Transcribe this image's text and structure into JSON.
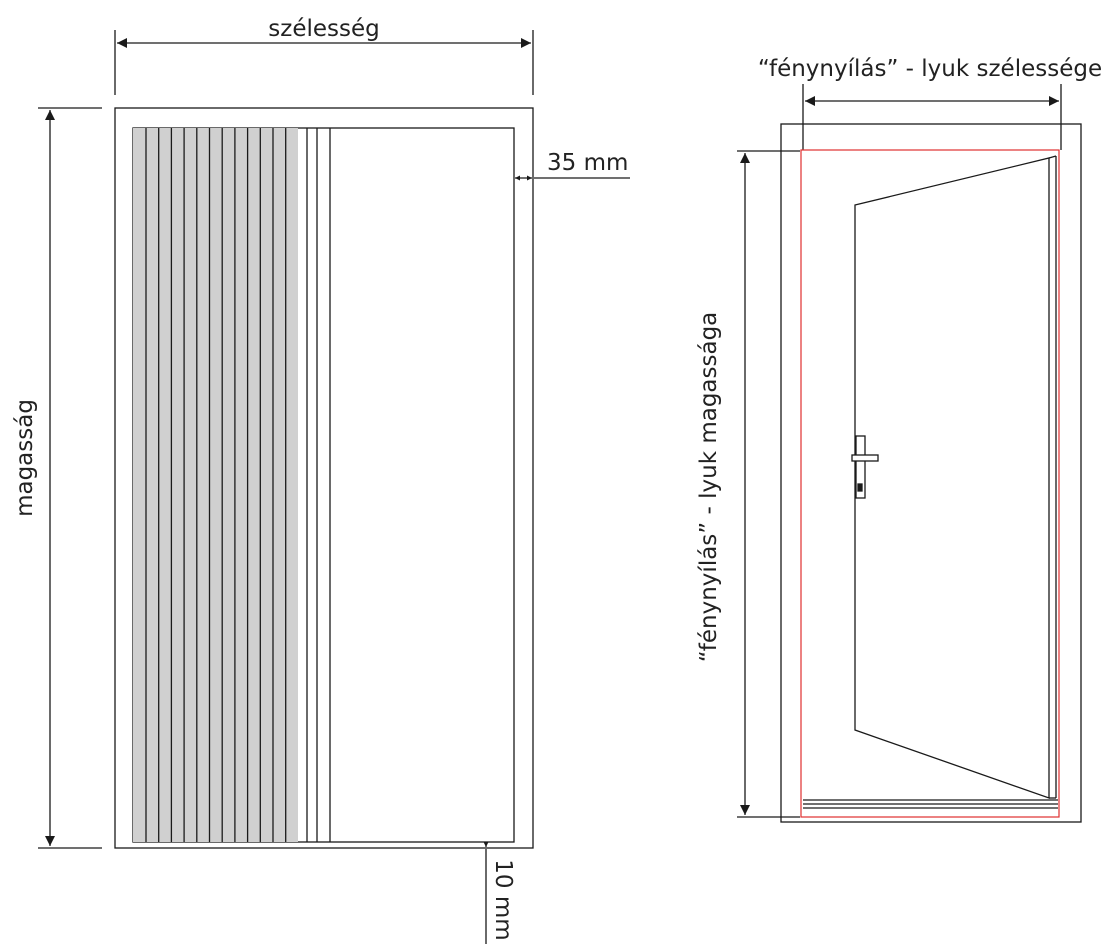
{
  "left_drawing": {
    "width_label": "szélesség",
    "height_label": "magasság",
    "side_gap_label": "35 mm",
    "bottom_gap_label": "10 mm",
    "pleat_fill_color": "#d0d0d0"
  },
  "right_drawing": {
    "opening_width_label": "“fénynyílás” - lyuk szélessége",
    "opening_height_label": "“fénynyílás” - lyuk magassága",
    "opening_outline_color": "#e03030"
  },
  "colors": {
    "line": "#1a1a1a"
  }
}
